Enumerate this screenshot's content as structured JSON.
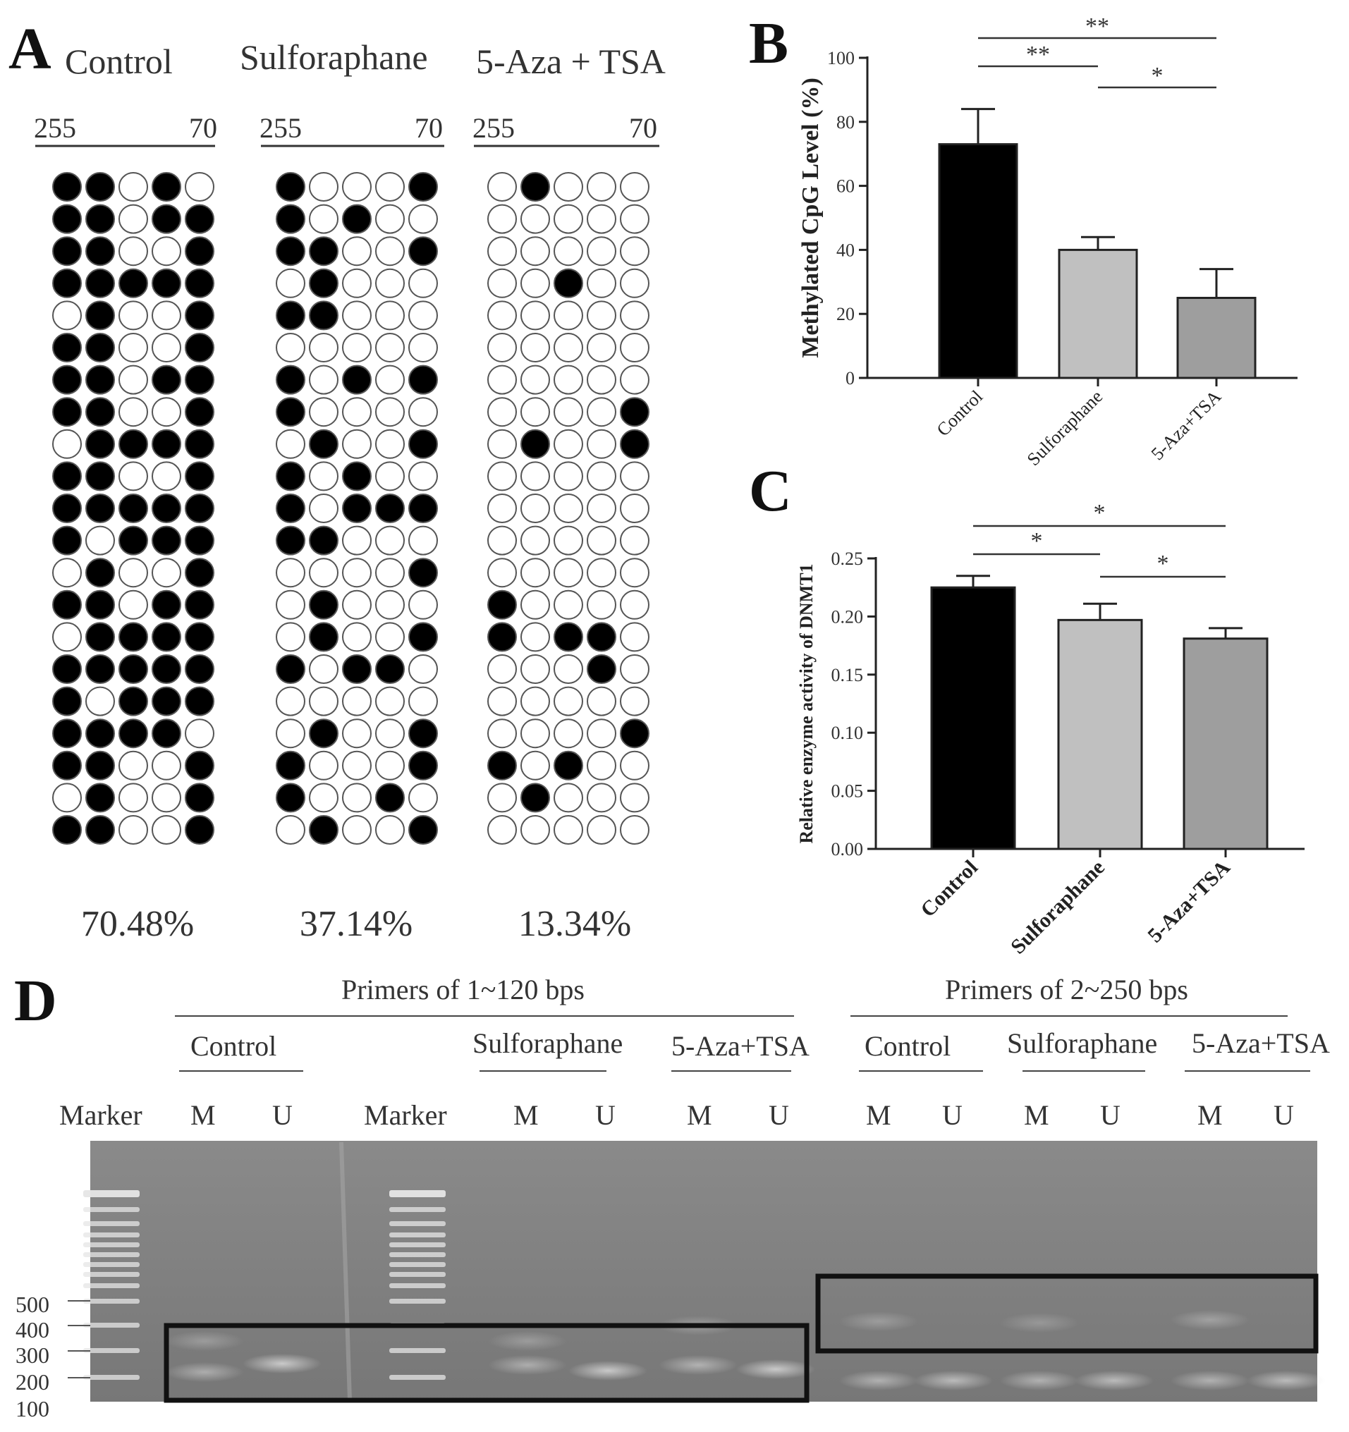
{
  "panel_labels": [
    "A",
    "B",
    "C",
    "D"
  ],
  "panelA": {
    "groups": [
      {
        "name": "Control",
        "percentage": "70.48%"
      },
      {
        "name": "Sulforaphane",
        "percentage": "37.14%"
      },
      {
        "name": "5-Aza + TSA",
        "percentage": "13.34%"
      }
    ],
    "position_start": "255",
    "position_end": "70"
  },
  "panelD": {
    "primer_groups": [
      "Primers of 1~120 bps",
      "Primers of 2~250 bps"
    ],
    "sub_groups": [
      "Control",
      "Sulforaphane",
      "5-Aza+TSA",
      "Control",
      "Sulforaphane",
      "5-Aza+TSA"
    ],
    "lanes": [
      "Marker",
      "M",
      "U",
      "Marker",
      "M",
      "U",
      "M",
      "U",
      "M",
      "U",
      "M",
      "U",
      "M",
      "U"
    ],
    "size_labels": [
      "500",
      "400",
      "300",
      "200",
      "100"
    ]
  },
  "colors": {
    "control_bar": "#000000",
    "sulforaphane_bar": "#c0c0c0",
    "aza_bar": "#9e9e9e",
    "gel": "#888888"
  },
  "chart_data": [
    {
      "type": "table",
      "panel": "A",
      "description_rows": 21,
      "columns": [
        "Control",
        "Sulforaphane",
        "5-Aza + TSA"
      ],
      "matrices": [
        [
          "11010",
          "11011",
          "11001",
          "11111",
          "01001",
          "11001",
          "11011",
          "11001",
          "01111",
          "11001",
          "11111",
          "10111",
          "01001",
          "11011",
          "01111",
          "11111",
          "10111",
          "11110",
          "11001",
          "01001",
          "11001"
        ],
        [
          "10001",
          "10100",
          "11001",
          "01000",
          "11000",
          "00000",
          "10101",
          "10000",
          "01001",
          "10100",
          "10111",
          "11000",
          "00001",
          "01000",
          "01001",
          "10110",
          "00000",
          "01001",
          "10001",
          "10010",
          "01001"
        ],
        [
          "01000",
          "00000",
          "00000",
          "00100",
          "00000",
          "00000",
          "00000",
          "00001",
          "01001",
          "00000",
          "00000",
          "00000",
          "00000",
          "10000",
          "10110",
          "00010",
          "00000",
          "00001",
          "10100",
          "01000",
          "00000"
        ]
      ],
      "percentages": [
        "70.48%",
        "37.14%",
        "13.34%"
      ]
    },
    {
      "type": "bar",
      "panel": "B",
      "categories": [
        "Control",
        "Sulforaphane",
        "5-Aza+TSA"
      ],
      "values": [
        73,
        40,
        25
      ],
      "errors": [
        11,
        4,
        9
      ],
      "ylabel": "Methylated CpG Level (%)",
      "ylim": [
        0,
        100
      ],
      "yticks": [
        "0",
        "20",
        "40",
        "60",
        "80",
        "100"
      ],
      "significance": [
        {
          "pair": [
            "Control",
            "5-Aza+TSA"
          ],
          "label": "**"
        },
        {
          "pair": [
            "Control",
            "Sulforaphane"
          ],
          "label": "**"
        },
        {
          "pair": [
            "Sulforaphane",
            "5-Aza+TSA"
          ],
          "label": "*"
        }
      ]
    },
    {
      "type": "bar",
      "panel": "C",
      "categories": [
        "Control",
        "Sulforaphane",
        "5-Aza+TSA"
      ],
      "values": [
        0.225,
        0.197,
        0.181
      ],
      "errors": [
        0.01,
        0.014,
        0.009
      ],
      "ylabel": "Relative enzyme activity of DNMT1",
      "ylim": [
        0,
        0.25
      ],
      "yticks": [
        "0.00",
        "0.05",
        "0.10",
        "0.15",
        "0.20",
        "0.25"
      ],
      "significance": [
        {
          "pair": [
            "Control",
            "5-Aza+TSA"
          ],
          "label": "*"
        },
        {
          "pair": [
            "Control",
            "Sulforaphane"
          ],
          "label": "*"
        },
        {
          "pair": [
            "Sulforaphane",
            "5-Aza+TSA"
          ],
          "label": "*"
        }
      ]
    }
  ]
}
